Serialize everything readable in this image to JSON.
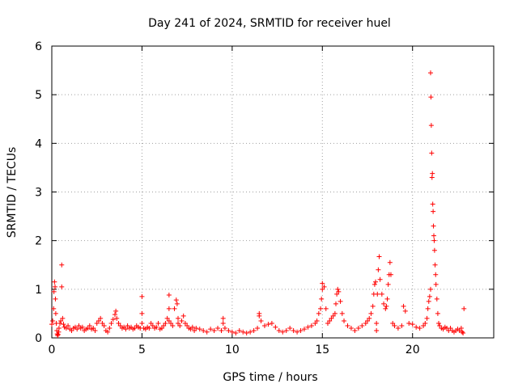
{
  "chart_data": {
    "type": "scatter",
    "title": "Day 241 of 2024, SRMTID for receiver huel",
    "xlabel": "GPS time / hours",
    "ylabel": "SRMTID / TECUs",
    "xlim": [
      0,
      24.5
    ],
    "ylim": [
      0,
      6
    ],
    "xticks": [
      0,
      5,
      10,
      15,
      20
    ],
    "yticks": [
      0,
      1,
      2,
      3,
      4,
      5,
      6
    ],
    "grid": true,
    "marker": "plus",
    "marker_color": "#ff0000",
    "series": [
      {
        "name": "SRMTID",
        "x": [
          0.0,
          0.05,
          0.1,
          0.12,
          0.15,
          0.18,
          0.2,
          0.22,
          0.25,
          0.28,
          0.3,
          0.32,
          0.35,
          0.38,
          0.4,
          0.45,
          0.5,
          0.55,
          0.55,
          0.6,
          0.65,
          0.7,
          0.8,
          0.9,
          1.0,
          1.1,
          1.2,
          1.3,
          1.4,
          1.5,
          1.6,
          1.7,
          1.8,
          1.9,
          2.0,
          2.1,
          2.2,
          2.3,
          2.4,
          2.5,
          2.6,
          2.7,
          2.8,
          2.9,
          3.0,
          3.1,
          3.2,
          3.3,
          3.4,
          3.5,
          3.55,
          3.6,
          3.7,
          3.8,
          3.9,
          4.0,
          4.1,
          4.2,
          4.3,
          4.4,
          4.5,
          4.6,
          4.7,
          4.8,
          4.9,
          5.0,
          5.0,
          5.0,
          5.1,
          5.2,
          5.3,
          5.4,
          5.5,
          5.6,
          5.7,
          5.8,
          5.9,
          6.0,
          6.1,
          6.2,
          6.3,
          6.4,
          6.5,
          6.5,
          6.5,
          6.6,
          6.7,
          6.8,
          6.9,
          6.95,
          7.0,
          7.0,
          7.1,
          7.2,
          7.3,
          7.4,
          7.5,
          7.6,
          7.7,
          7.8,
          7.9,
          8.0,
          8.2,
          8.4,
          8.6,
          8.8,
          9.0,
          9.2,
          9.4,
          9.5,
          9.5,
          9.6,
          9.8,
          10.0,
          10.2,
          10.4,
          10.6,
          10.8,
          11.0,
          11.2,
          11.4,
          11.5,
          11.5,
          11.6,
          11.8,
          12.0,
          12.2,
          12.4,
          12.6,
          12.8,
          13.0,
          13.2,
          13.4,
          13.6,
          13.8,
          14.0,
          14.2,
          14.4,
          14.6,
          14.7,
          14.8,
          14.9,
          14.95,
          15.0,
          15.0,
          15.1,
          15.2,
          15.3,
          15.4,
          15.5,
          15.6,
          15.7,
          15.75,
          15.8,
          15.85,
          15.9,
          16.0,
          16.1,
          16.2,
          16.4,
          16.6,
          16.8,
          17.0,
          17.2,
          17.4,
          17.5,
          17.6,
          17.7,
          17.8,
          17.85,
          17.9,
          17.95,
          18.0,
          18.0,
          18.05,
          18.1,
          18.15,
          18.2,
          18.3,
          18.4,
          18.5,
          18.55,
          18.6,
          18.65,
          18.7,
          18.75,
          18.8,
          18.9,
          19.0,
          19.2,
          19.4,
          19.5,
          19.6,
          19.8,
          20.0,
          20.2,
          20.4,
          20.6,
          20.7,
          20.8,
          20.85,
          20.9,
          20.95,
          21.0,
          21.0,
          21.02,
          21.04,
          21.06,
          21.08,
          21.1,
          21.12,
          21.14,
          21.16,
          21.18,
          21.2,
          21.22,
          21.25,
          21.28,
          21.3,
          21.35,
          21.4,
          21.45,
          21.5,
          21.6,
          21.7,
          21.8,
          21.9,
          22.0,
          22.1,
          22.2,
          22.3,
          22.4,
          22.5,
          22.6,
          22.7,
          22.75,
          22.8,
          22.85
        ],
        "y": [
          0.28,
          0.35,
          0.6,
          0.95,
          1.15,
          1.05,
          0.8,
          0.5,
          0.3,
          0.15,
          0.08,
          0.05,
          0.07,
          0.12,
          0.2,
          0.3,
          0.35,
          1.5,
          1.05,
          0.4,
          0.28,
          0.22,
          0.2,
          0.25,
          0.18,
          0.15,
          0.2,
          0.22,
          0.18,
          0.25,
          0.2,
          0.22,
          0.15,
          0.18,
          0.2,
          0.25,
          0.18,
          0.2,
          0.15,
          0.3,
          0.35,
          0.4,
          0.3,
          0.25,
          0.15,
          0.12,
          0.2,
          0.3,
          0.38,
          0.48,
          0.55,
          0.4,
          0.3,
          0.25,
          0.2,
          0.22,
          0.18,
          0.25,
          0.2,
          0.22,
          0.18,
          0.2,
          0.25,
          0.22,
          0.2,
          0.85,
          0.5,
          0.3,
          0.2,
          0.18,
          0.22,
          0.2,
          0.3,
          0.25,
          0.2,
          0.22,
          0.3,
          0.18,
          0.2,
          0.25,
          0.3,
          0.4,
          0.88,
          0.6,
          0.35,
          0.3,
          0.25,
          0.6,
          0.78,
          0.7,
          0.4,
          0.3,
          0.25,
          0.35,
          0.45,
          0.3,
          0.25,
          0.2,
          0.18,
          0.22,
          0.15,
          0.2,
          0.18,
          0.15,
          0.12,
          0.18,
          0.15,
          0.2,
          0.15,
          0.4,
          0.3,
          0.2,
          0.15,
          0.12,
          0.1,
          0.15,
          0.12,
          0.1,
          0.12,
          0.15,
          0.2,
          0.5,
          0.45,
          0.35,
          0.25,
          0.28,
          0.3,
          0.22,
          0.15,
          0.12,
          0.15,
          0.2,
          0.15,
          0.12,
          0.15,
          0.18,
          0.22,
          0.25,
          0.3,
          0.35,
          0.5,
          0.6,
          0.8,
          1.0,
          1.12,
          1.05,
          0.6,
          0.3,
          0.35,
          0.4,
          0.45,
          0.5,
          0.7,
          0.9,
          1.0,
          0.95,
          0.75,
          0.5,
          0.35,
          0.25,
          0.2,
          0.15,
          0.2,
          0.25,
          0.3,
          0.35,
          0.4,
          0.5,
          0.65,
          0.9,
          1.1,
          1.15,
          0.3,
          0.15,
          0.9,
          1.4,
          1.67,
          1.2,
          0.9,
          0.7,
          0.6,
          0.65,
          0.8,
          1.1,
          1.3,
          1.55,
          1.3,
          0.3,
          0.25,
          0.2,
          0.25,
          0.65,
          0.55,
          0.3,
          0.28,
          0.22,
          0.2,
          0.25,
          0.3,
          0.4,
          0.6,
          0.75,
          0.85,
          1.0,
          5.45,
          4.95,
          4.37,
          3.8,
          3.3,
          3.38,
          2.75,
          2.6,
          2.3,
          2.1,
          2.0,
          1.8,
          1.5,
          1.3,
          1.1,
          0.8,
          0.5,
          0.3,
          0.25,
          0.2,
          0.18,
          0.22,
          0.2,
          0.15,
          0.2,
          0.15,
          0.12,
          0.15,
          0.18,
          0.15,
          0.2,
          0.12,
          0.1,
          0.6
        ]
      }
    ]
  }
}
